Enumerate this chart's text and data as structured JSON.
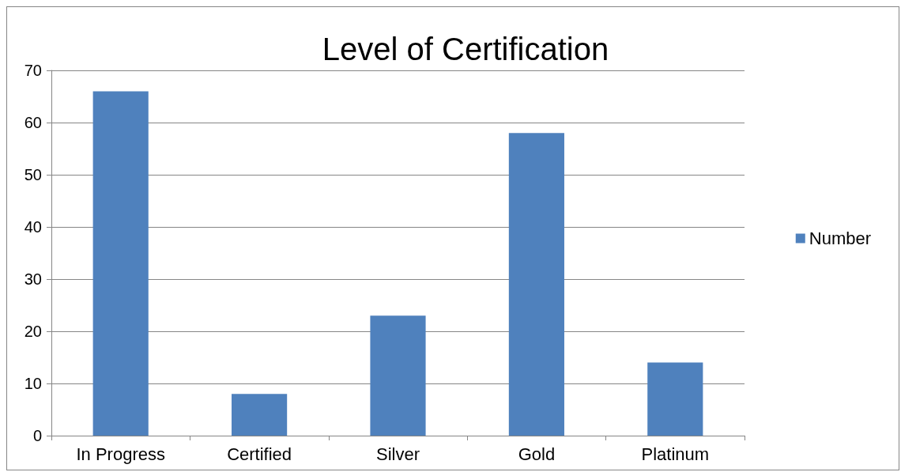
{
  "chart_data": {
    "type": "bar",
    "title": "Level of Certification",
    "categories": [
      "In Progress",
      "Certified",
      "Silver",
      "Gold",
      "Platinum"
    ],
    "series": [
      {
        "name": "Number",
        "color": "#4f81bd",
        "values": [
          66,
          8,
          23,
          58,
          14
        ]
      }
    ],
    "ylim": [
      0,
      70
    ],
    "yticks": [
      0,
      10,
      20,
      30,
      40,
      50,
      60,
      70
    ],
    "grid": "y",
    "legend": "right"
  }
}
